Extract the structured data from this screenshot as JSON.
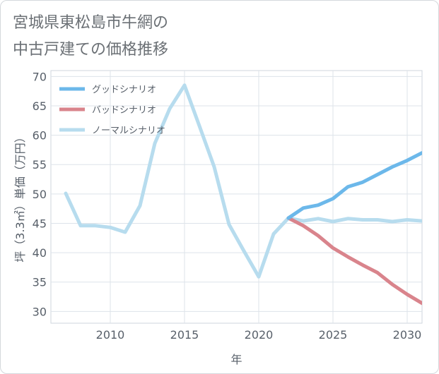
{
  "title_lines": [
    "宮城県東松島市牛網の",
    "中古戸建ての価格推移"
  ],
  "chart_data": {
    "type": "line",
    "xlabel": "年",
    "ylabel": "坪（3.3㎡）単価（万円）",
    "xlim": [
      2006,
      2031
    ],
    "ylim": [
      28,
      71
    ],
    "xticks": [
      2010,
      2015,
      2020,
      2025,
      2030
    ],
    "yticks": [
      30,
      35,
      40,
      45,
      50,
      55,
      60,
      65,
      70
    ],
    "grid": true,
    "legend_position": "top-left",
    "series": [
      {
        "name": "グッドシナリオ",
        "color": "#6cb8ea",
        "x": [
          2022,
          2023,
          2024,
          2025,
          2026,
          2027,
          2028,
          2029,
          2030,
          2031
        ],
        "y": [
          45.9,
          47.6,
          48.1,
          49.2,
          51.2,
          52.0,
          53.3,
          54.6,
          55.7,
          57.0
        ]
      },
      {
        "name": "バッドシナリオ",
        "color": "#d9848c",
        "x": [
          2022,
          2023,
          2024,
          2025,
          2026,
          2027,
          2028,
          2029,
          2030,
          2031
        ],
        "y": [
          45.9,
          44.6,
          42.9,
          40.8,
          39.3,
          37.9,
          36.6,
          34.6,
          32.9,
          31.4
        ]
      },
      {
        "name": "ノーマルシナリオ",
        "color": "#b7dcee",
        "x": [
          2007,
          2008,
          2009,
          2010,
          2011,
          2012,
          2013,
          2014,
          2015,
          2016,
          2017,
          2018,
          2019,
          2020,
          2021,
          2022,
          2023,
          2024,
          2025,
          2026,
          2027,
          2028,
          2029,
          2030,
          2031
        ],
        "y": [
          50.1,
          44.6,
          44.6,
          44.3,
          43.5,
          48.0,
          58.6,
          64.5,
          68.5,
          61.6,
          54.6,
          44.8,
          40.3,
          35.9,
          43.2,
          45.9,
          45.4,
          45.8,
          45.3,
          45.8,
          45.6,
          45.6,
          45.3,
          45.6,
          45.4
        ]
      }
    ]
  }
}
